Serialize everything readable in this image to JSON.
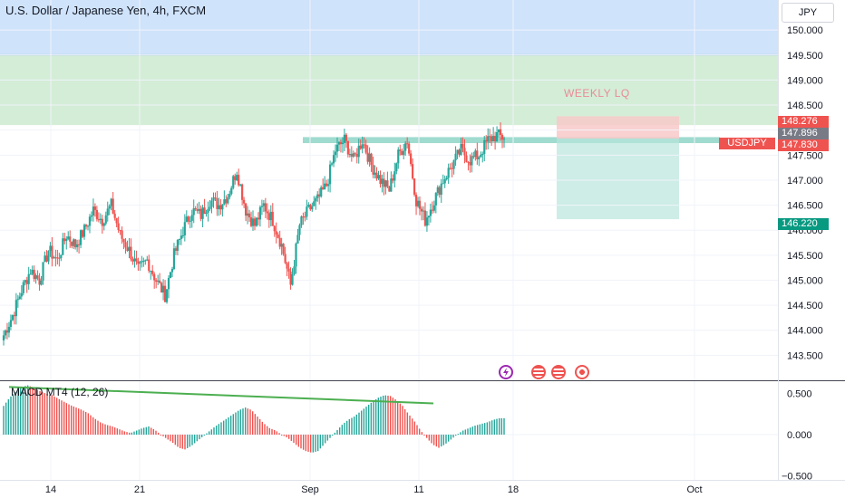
{
  "header": {
    "title": "U.S. Dollar / Japanese Yen, 4h, FXCM",
    "currency_button": "JPY"
  },
  "annotations": {
    "zone_label": "WEEKLY LQ",
    "symbol_tag": "USDJPY"
  },
  "price_labels": {
    "tp_top": "148.276",
    "current_small": "147.896",
    "last": "147.830",
    "target": "146.220"
  },
  "colors": {
    "up": "#26a69a",
    "down": "#ef5350",
    "zone_blue": "#cfe3fb",
    "zone_green": "#d4edd7",
    "macd_line": "#4caf50",
    "target_label": "#089981",
    "current_small_label": "#787b86"
  },
  "chart_data": [
    {
      "type": "candlestick",
      "title": "U.S. Dollar / Japanese Yen, 4h, FXCM",
      "ylim": [
        143.0,
        150.6
      ],
      "y_ticks": [
        143.5,
        144.0,
        144.5,
        145.0,
        145.5,
        146.0,
        146.5,
        147.0,
        147.5,
        148.0,
        148.5,
        149.0,
        149.5,
        150.0
      ],
      "x_tick_labels": [
        "14",
        "21",
        "Sep",
        "11",
        "18",
        "Oct"
      ],
      "close_path": [
        143.9,
        144.3,
        144.8,
        145.2,
        145.0,
        145.6,
        145.4,
        145.9,
        145.7,
        146.0,
        146.4,
        146.2,
        146.5,
        145.9,
        145.6,
        145.2,
        145.4,
        145.0,
        144.7,
        145.5,
        146.0,
        146.4,
        146.3,
        146.6,
        146.5,
        146.7,
        147.2,
        146.4,
        146.1,
        146.5,
        146.2,
        145.7,
        144.9,
        146.1,
        146.4,
        146.6,
        146.9,
        147.6,
        147.8,
        147.4,
        147.8,
        147.3,
        147.0,
        146.8,
        147.5,
        147.8,
        146.6,
        146.2,
        146.6,
        147.0,
        147.3,
        147.6,
        147.4,
        147.5,
        147.8,
        147.9,
        147.83
      ],
      "zones": [
        {
          "name": "upper-zone",
          "from": 149.5,
          "to": 150.6
        },
        {
          "name": "weekly-lq-zone",
          "from": 148.1,
          "to": 149.5
        },
        {
          "name": "resistance-band",
          "from": 147.74,
          "to": 147.86
        }
      ],
      "position": {
        "entry": 147.83,
        "stop": 148.276,
        "target": 146.22
      }
    },
    {
      "type": "bar",
      "title": "MACD MT4 (12, 26)",
      "ylim": [
        -0.55,
        0.65
      ],
      "y_ticks": [
        0.5,
        0.0,
        -0.5
      ],
      "values": [
        0.35,
        0.45,
        0.52,
        0.58,
        0.6,
        0.57,
        0.53,
        0.5,
        0.48,
        0.44,
        0.4,
        0.36,
        0.33,
        0.3,
        0.26,
        0.2,
        0.15,
        0.12,
        0.1,
        0.07,
        0.04,
        0.02,
        0.05,
        0.08,
        0.1,
        0.06,
        0.0,
        -0.05,
        -0.1,
        -0.16,
        -0.18,
        -0.14,
        -0.08,
        -0.02,
        0.04,
        0.1,
        0.15,
        0.2,
        0.25,
        0.3,
        0.33,
        0.3,
        0.22,
        0.14,
        0.08,
        0.05,
        0.0,
        -0.04,
        -0.1,
        -0.16,
        -0.2,
        -0.22,
        -0.2,
        -0.12,
        -0.04,
        0.04,
        0.12,
        0.18,
        0.22,
        0.28,
        0.34,
        0.4,
        0.45,
        0.48,
        0.47,
        0.42,
        0.35,
        0.25,
        0.16,
        0.05,
        -0.04,
        -0.12,
        -0.16,
        -0.12,
        -0.06,
        0.0,
        0.05,
        0.08,
        0.11,
        0.13,
        0.15,
        0.18,
        0.2
      ],
      "trend_line": {
        "start": 0.58,
        "end": 0.38
      }
    }
  ]
}
